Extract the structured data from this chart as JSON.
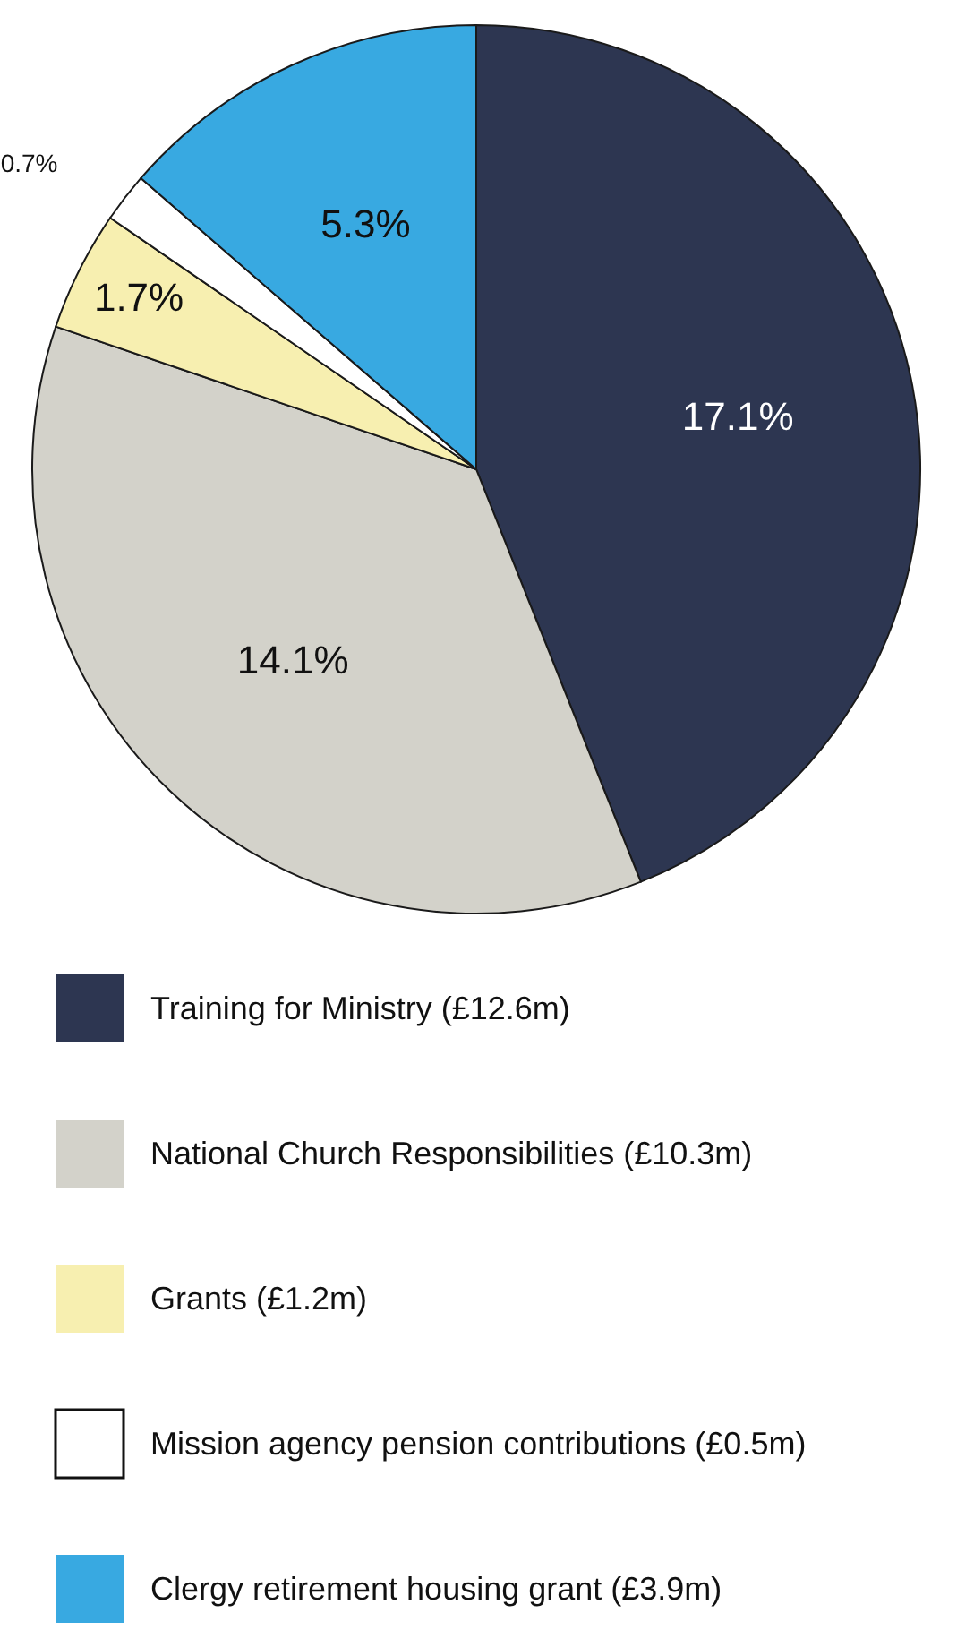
{
  "chart_data": {
    "type": "pie",
    "categories": [
      "Training for Ministry (£12.6m)",
      "National Church Responsibilities (£10.3m)",
      "Grants  (£1.2m)",
      "Mission agency pension contributions (£0.5m)",
      "Clergy retirement housing grant (£3.9m)"
    ],
    "values": [
      17.1,
      14.1,
      1.7,
      0.7,
      5.3
    ],
    "value_labels": [
      "17.1%",
      "14.1%",
      "1.7%",
      "0.7%",
      "5.3%"
    ],
    "colors": [
      "#2d3651",
      "#d3d2ca",
      "#f7efb0",
      "#ffffff",
      "#38a9e1"
    ],
    "legend": "bottom"
  }
}
